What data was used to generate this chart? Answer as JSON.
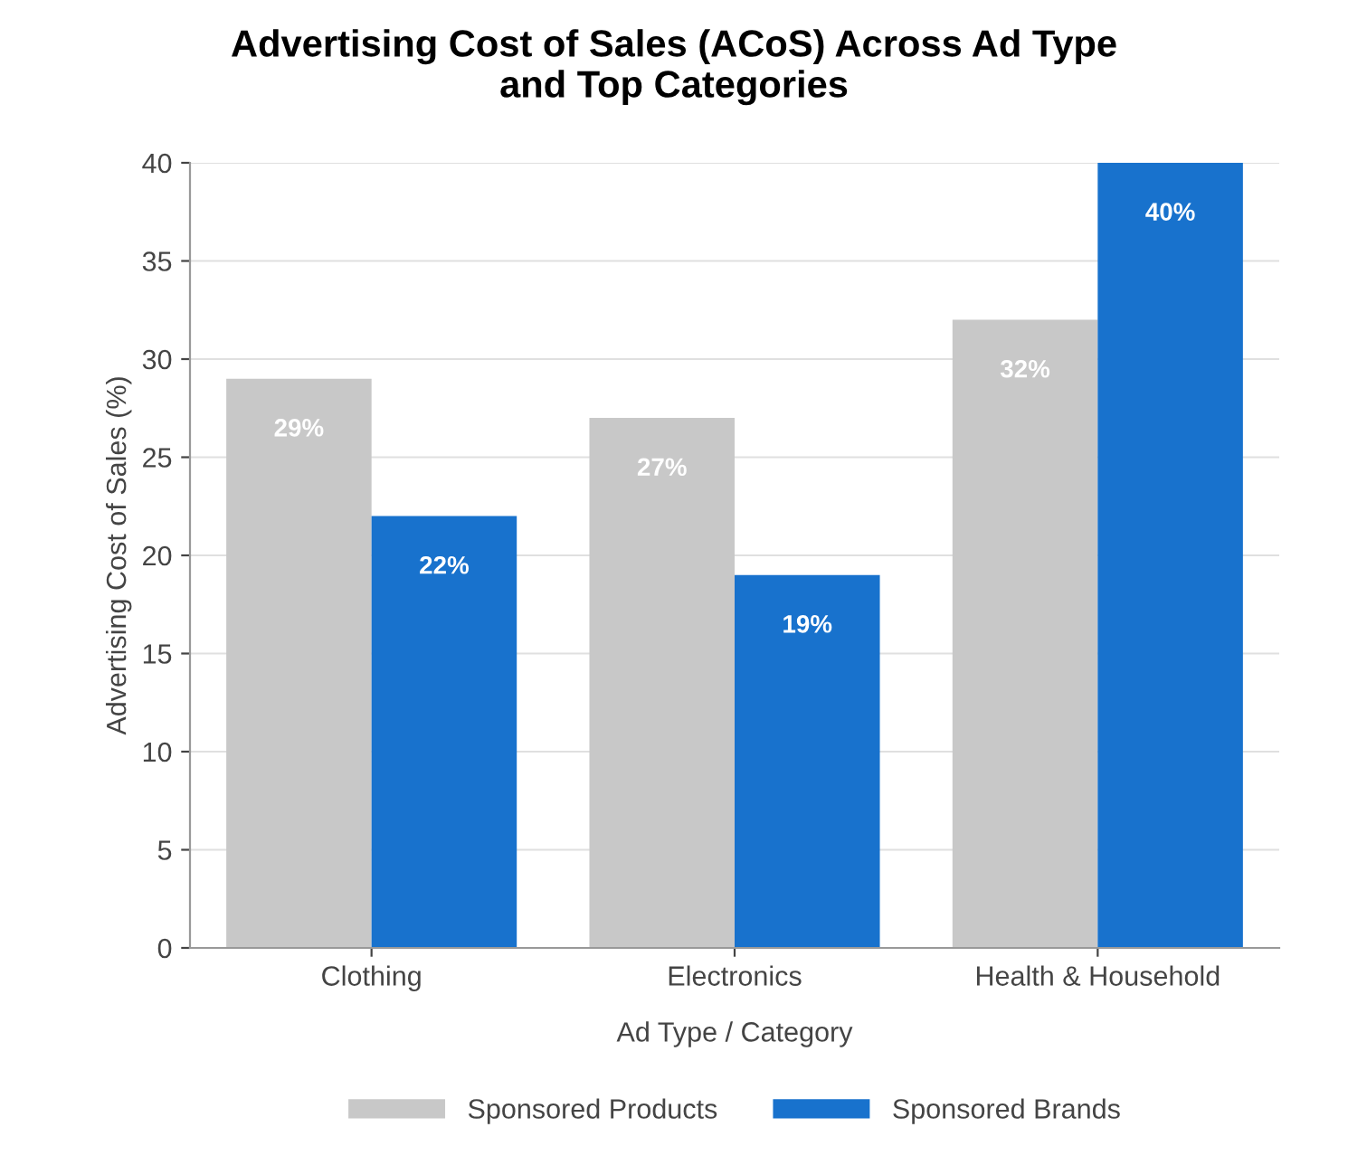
{
  "chart_data": {
    "type": "bar",
    "title": "Advertising Cost of Sales (ACoS) Across Ad Type\nand Top Categories",
    "xlabel": "Ad Type / Category",
    "ylabel": "Advertising Cost of Sales (%)",
    "categories": [
      "Clothing",
      "Electronics",
      "Health & Household"
    ],
    "series": [
      {
        "name": "Sponsored Products",
        "color": "#c8c8c8",
        "values": [
          29,
          27,
          32
        ],
        "value_labels": [
          "29%",
          "27%",
          "32%"
        ]
      },
      {
        "name": "Sponsored Brands",
        "color": "#1872cd",
        "values": [
          22,
          19,
          40
        ],
        "value_labels": [
          "22%",
          "19%",
          "40%"
        ]
      }
    ],
    "ylim": [
      0,
      40
    ],
    "yticks": [
      0,
      5,
      10,
      15,
      20,
      25,
      30,
      35,
      40
    ],
    "grid": "y",
    "legend": "bottom"
  }
}
